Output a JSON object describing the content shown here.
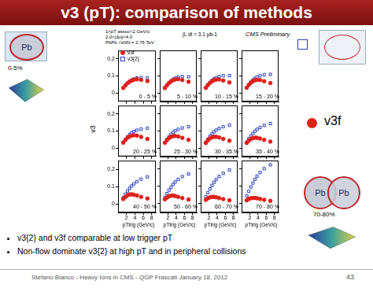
{
  "slide": {
    "title": "v3 (pT): comparison of methods",
    "bullets": [
      "v3{2} and v3f comparable at low trigger pT",
      "Non-flow dominate v3{2} at high pT and in peripheral collisions"
    ],
    "footer": "Stefano Bianco - Heavy Ions in CMS - QGP Frascati January 18, 2012",
    "page": "43",
    "left_panel": {
      "nucleus": "Pb",
      "centrality": "0-5%"
    },
    "right_panel": {
      "nuclei": [
        "Pb",
        "Pb"
      ],
      "centrality": "70-80%",
      "marker_label": "v3f"
    }
  },
  "figure": {
    "annotations": [
      "1<pT assoc<2 GeV/c",
      "2.0<|Δη|<4.0",
      "PbPb √sNN = 2.76 TeV",
      "∫L dt = 3.1 μb-1",
      "CMS Preliminary"
    ],
    "ylabel": "v3"
  },
  "chart_data": [
    {
      "type": "scatter",
      "title": "0 - 5 %",
      "legend": "upper left",
      "tick_labels": "y",
      "grid": false,
      "x": [
        1.25,
        1.75,
        2.25,
        2.75,
        3.25,
        3.75,
        4.5,
        5.5,
        7
      ],
      "xlim": [
        0,
        9
      ],
      "xticks": [
        2,
        4,
        6,
        8
      ],
      "ylim": [
        -0.05,
        0.25
      ],
      "yticks": [
        0,
        0.1,
        0.2
      ],
      "series": [
        {
          "name": "v3f",
          "color": "#e0201b",
          "marker": "circle",
          "values": [
            0.029,
            0.044,
            0.057,
            0.066,
            0.073,
            0.077,
            0.08,
            0.077,
            0.07
          ]
        },
        {
          "name": "v3{2}",
          "color": "#2a3fbf",
          "marker": "open_square",
          "values": [
            0.03,
            0.045,
            0.058,
            0.068,
            0.076,
            0.082,
            0.088,
            0.09,
            0.088
          ]
        }
      ]
    },
    {
      "type": "scatter",
      "title": "5 - 10 %",
      "tick_labels": false,
      "grid": false,
      "x": [
        1.25,
        1.75,
        2.25,
        2.75,
        3.25,
        3.75,
        4.5,
        5.5,
        7
      ],
      "xlim": [
        0,
        9
      ],
      "xticks": [
        2,
        4,
        6,
        8
      ],
      "ylim": [
        -0.05,
        0.25
      ],
      "yticks": [
        0,
        0.1,
        0.2
      ],
      "series": [
        {
          "name": "v3f",
          "color": "#e0201b",
          "marker": "circle",
          "values": [
            0.029,
            0.045,
            0.058,
            0.068,
            0.075,
            0.079,
            0.081,
            0.076,
            0.066
          ]
        },
        {
          "name": "v3{2}",
          "color": "#2a3fbf",
          "marker": "open_square",
          "values": [
            0.03,
            0.046,
            0.06,
            0.071,
            0.08,
            0.087,
            0.093,
            0.096,
            0.095
          ]
        }
      ]
    },
    {
      "type": "scatter",
      "title": "10 - 15 %",
      "tick_labels": false,
      "grid": false,
      "x": [
        1.25,
        1.75,
        2.25,
        2.75,
        3.25,
        3.75,
        4.5,
        5.5,
        7
      ],
      "xlim": [
        0,
        9
      ],
      "xticks": [
        2,
        4,
        6,
        8
      ],
      "ylim": [
        -0.05,
        0.25
      ],
      "yticks": [
        0,
        0.1,
        0.2
      ],
      "series": [
        {
          "name": "v3f",
          "color": "#e0201b",
          "marker": "circle",
          "values": [
            0.03,
            0.046,
            0.059,
            0.069,
            0.075,
            0.078,
            0.079,
            0.073,
            0.062
          ]
        },
        {
          "name": "v3{2}",
          "color": "#2a3fbf",
          "marker": "open_square",
          "values": [
            0.031,
            0.048,
            0.062,
            0.074,
            0.083,
            0.09,
            0.097,
            0.101,
            0.102
          ]
        }
      ]
    },
    {
      "type": "scatter",
      "title": "15 - 20 %",
      "tick_labels": false,
      "grid": false,
      "x": [
        1.25,
        1.75,
        2.25,
        2.75,
        3.25,
        3.75,
        4.5,
        5.5,
        7
      ],
      "xlim": [
        0,
        9
      ],
      "xticks": [
        2,
        4,
        6,
        8
      ],
      "ylim": [
        -0.05,
        0.25
      ],
      "yticks": [
        0,
        0.1,
        0.2
      ],
      "series": [
        {
          "name": "v3f",
          "color": "#e0201b",
          "marker": "circle",
          "values": [
            0.031,
            0.047,
            0.06,
            0.069,
            0.075,
            0.077,
            0.076,
            0.069,
            0.058
          ]
        },
        {
          "name": "v3{2}",
          "color": "#2a3fbf",
          "marker": "open_square",
          "values": [
            0.032,
            0.049,
            0.064,
            0.076,
            0.086,
            0.094,
            0.101,
            0.106,
            0.109
          ]
        }
      ]
    },
    {
      "type": "scatter",
      "title": "20 - 25 %",
      "tick_labels": "y",
      "grid": false,
      "x": [
        1.25,
        1.75,
        2.25,
        2.75,
        3.25,
        3.75,
        4.5,
        5.5,
        7
      ],
      "xlim": [
        0,
        9
      ],
      "xticks": [
        2,
        4,
        6,
        8
      ],
      "ylim": [
        -0.05,
        0.25
      ],
      "yticks": [
        0,
        0.1,
        0.2
      ],
      "series": [
        {
          "name": "v3f",
          "color": "#e0201b",
          "marker": "circle",
          "values": [
            0.031,
            0.047,
            0.06,
            0.068,
            0.073,
            0.075,
            0.073,
            0.065,
            0.053
          ]
        },
        {
          "name": "v3{2}",
          "color": "#2a3fbf",
          "marker": "open_square",
          "values": [
            0.033,
            0.05,
            0.066,
            0.079,
            0.089,
            0.097,
            0.105,
            0.112,
            0.117
          ]
        }
      ]
    },
    {
      "type": "scatter",
      "title": "25 - 30 %",
      "tick_labels": false,
      "grid": false,
      "x": [
        1.25,
        1.75,
        2.25,
        2.75,
        3.25,
        3.75,
        4.5,
        5.5,
        7
      ],
      "xlim": [
        0,
        9
      ],
      "xticks": [
        2,
        4,
        6,
        8
      ],
      "ylim": [
        -0.05,
        0.25
      ],
      "yticks": [
        0,
        0.1,
        0.2
      ],
      "series": [
        {
          "name": "v3f",
          "color": "#e0201b",
          "marker": "circle",
          "values": [
            0.031,
            0.046,
            0.058,
            0.066,
            0.07,
            0.071,
            0.068,
            0.06,
            0.048
          ]
        },
        {
          "name": "v3{2}",
          "color": "#2a3fbf",
          "marker": "open_square",
          "values": [
            0.033,
            0.051,
            0.067,
            0.081,
            0.092,
            0.101,
            0.11,
            0.118,
            0.125
          ]
        }
      ]
    },
    {
      "type": "scatter",
      "title": "30 - 35 %",
      "tick_labels": false,
      "grid": false,
      "x": [
        1.25,
        1.75,
        2.25,
        2.75,
        3.25,
        3.75,
        4.5,
        5.5,
        7
      ],
      "xlim": [
        0,
        9
      ],
      "xticks": [
        2,
        4,
        6,
        8
      ],
      "ylim": [
        -0.05,
        0.25
      ],
      "yticks": [
        0,
        0.1,
        0.2
      ],
      "series": [
        {
          "name": "v3f",
          "color": "#e0201b",
          "marker": "circle",
          "values": [
            0.03,
            0.045,
            0.056,
            0.063,
            0.066,
            0.066,
            0.062,
            0.054,
            0.043
          ]
        },
        {
          "name": "v3{2}",
          "color": "#2a3fbf",
          "marker": "open_square",
          "values": [
            0.034,
            0.052,
            0.069,
            0.083,
            0.095,
            0.105,
            0.115,
            0.125,
            0.134
          ]
        }
      ]
    },
    {
      "type": "scatter",
      "title": "35 - 40 %",
      "tick_labels": false,
      "grid": false,
      "x": [
        1.25,
        1.75,
        2.25,
        2.75,
        3.25,
        3.75,
        4.5,
        5.5,
        7
      ],
      "xlim": [
        0,
        9
      ],
      "xticks": [
        2,
        4,
        6,
        8
      ],
      "ylim": [
        -0.05,
        0.25
      ],
      "yticks": [
        0,
        0.1,
        0.2
      ],
      "series": [
        {
          "name": "v3f",
          "color": "#e0201b",
          "marker": "circle",
          "values": [
            0.03,
            0.043,
            0.053,
            0.059,
            0.061,
            0.06,
            0.056,
            0.048,
            0.038
          ]
        },
        {
          "name": "v3{2}",
          "color": "#2a3fbf",
          "marker": "open_square",
          "values": [
            0.035,
            0.054,
            0.071,
            0.086,
            0.099,
            0.11,
            0.121,
            0.133,
            0.144
          ]
        }
      ]
    },
    {
      "type": "scatter",
      "title": "40 - 50 %",
      "tick_labels": true,
      "xlabel": "pTtrig (GeV/c)",
      "grid": false,
      "x": [
        1.25,
        1.75,
        2.25,
        2.75,
        3.25,
        3.75,
        4.5,
        5.5,
        7
      ],
      "xlim": [
        0,
        9
      ],
      "xticks": [
        2,
        4,
        6,
        8
      ],
      "ylim": [
        -0.05,
        0.25
      ],
      "yticks": [
        0,
        0.1,
        0.2
      ],
      "series": [
        {
          "name": "v3f",
          "color": "#e0201b",
          "marker": "circle",
          "values": [
            0.028,
            0.04,
            0.049,
            0.054,
            0.055,
            0.053,
            0.048,
            0.04,
            0.031
          ]
        },
        {
          "name": "v3{2}",
          "color": "#2a3fbf",
          "marker": "open_square",
          "values": [
            0.036,
            0.056,
            0.074,
            0.09,
            0.104,
            0.116,
            0.129,
            0.143,
            0.156
          ]
        }
      ]
    },
    {
      "type": "scatter",
      "title": "50 - 60 %",
      "tick_labels": "x",
      "xlabel": "pTtrig (GeV/c)",
      "grid": false,
      "x": [
        1.25,
        1.75,
        2.25,
        2.75,
        3.25,
        3.75,
        4.5,
        5.5,
        7
      ],
      "xlim": [
        0,
        9
      ],
      "xticks": [
        2,
        4,
        6,
        8
      ],
      "ylim": [
        -0.05,
        0.25
      ],
      "yticks": [
        0,
        0.1,
        0.2
      ],
      "series": [
        {
          "name": "v3f",
          "color": "#e0201b",
          "marker": "circle",
          "values": [
            0.026,
            0.036,
            0.043,
            0.047,
            0.047,
            0.045,
            0.04,
            0.033,
            0.025
          ]
        },
        {
          "name": "v3{2}",
          "color": "#2a3fbf",
          "marker": "open_square",
          "values": [
            0.038,
            0.059,
            0.079,
            0.096,
            0.112,
            0.126,
            0.141,
            0.157,
            0.172
          ]
        }
      ]
    },
    {
      "type": "scatter",
      "title": "60 - 70 %",
      "tick_labels": "x",
      "xlabel": "pTtrig (GeV/c)",
      "grid": false,
      "x": [
        1.25,
        1.75,
        2.25,
        2.75,
        3.25,
        3.75,
        4.5,
        5.5,
        7
      ],
      "xlim": [
        0,
        9
      ],
      "xticks": [
        2,
        4,
        6,
        8
      ],
      "ylim": [
        -0.05,
        0.25
      ],
      "yticks": [
        0,
        0.1,
        0.2
      ],
      "series": [
        {
          "name": "v3f",
          "color": "#e0201b",
          "marker": "circle",
          "values": [
            0.023,
            0.032,
            0.037,
            0.04,
            0.04,
            0.038,
            0.033,
            0.027,
            0.02
          ]
        },
        {
          "name": "v3{2}",
          "color": "#2a3fbf",
          "marker": "open_square",
          "values": [
            0.041,
            0.064,
            0.086,
            0.106,
            0.124,
            0.14,
            0.158,
            0.176,
            0.195
          ]
        }
      ]
    },
    {
      "type": "scatter",
      "title": "70 - 80 %",
      "tick_labels": "x",
      "xlabel": "pTtrig (GeV/c)",
      "grid": false,
      "x": [
        1.25,
        1.75,
        2.25,
        2.75,
        3.25,
        3.75,
        4.5,
        5.5,
        7
      ],
      "xlim": [
        0,
        9
      ],
      "xticks": [
        2,
        4,
        6,
        8
      ],
      "ylim": [
        -0.05,
        0.25
      ],
      "yticks": [
        0,
        0.1,
        0.2
      ],
      "series": [
        {
          "name": "v3f",
          "color": "#e0201b",
          "marker": "circle",
          "values": [
            0.02,
            0.028,
            0.032,
            0.034,
            0.034,
            0.032,
            0.028,
            0.023,
            0.017
          ]
        },
        {
          "name": "v3{2}",
          "color": "#2a3fbf",
          "marker": "open_square",
          "values": [
            0.046,
            0.072,
            0.097,
            0.12,
            0.141,
            0.16,
            0.181,
            0.203,
            0.225
          ]
        }
      ]
    }
  ]
}
